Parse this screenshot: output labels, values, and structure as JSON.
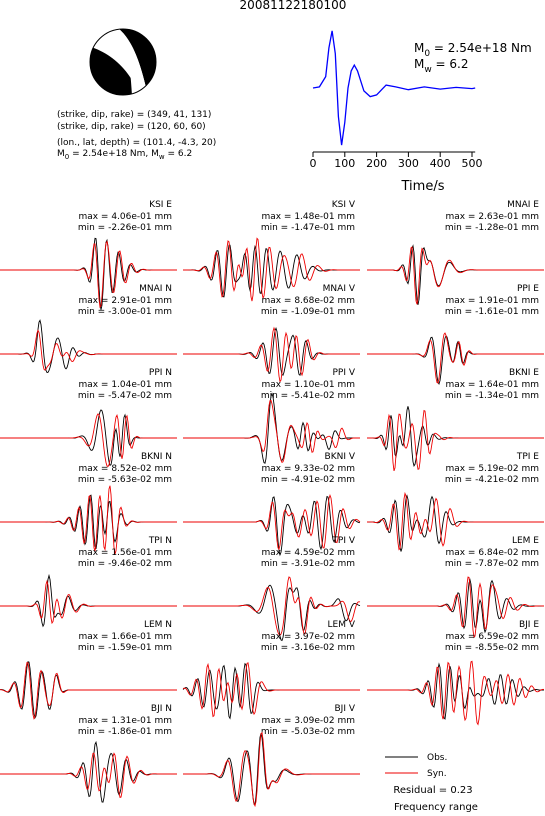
{
  "title": "20081122180100",
  "mechanism": {
    "lines": [
      "(strike, dip, rake) = (349, 41, 131)",
      "(strike, dip, rake) = (120, 60, 60)",
      "(lon., lat, depth) = (101.4, -4.3, 20)"
    ],
    "moment": {
      "m": "M",
      "m_sub": "0",
      "m_text": " = 2.54e+18 Nm, ",
      "w": "M",
      "w_sub": "w",
      "w_text": " = 6.2"
    }
  },
  "chart_data": {
    "type": "line",
    "x_label": "Time/s",
    "color": "#0000ff",
    "x": [
      0,
      20,
      40,
      50,
      60,
      70,
      80,
      90,
      100,
      110,
      120,
      130,
      140,
      160,
      180,
      200,
      230,
      260,
      300,
      350,
      400,
      450,
      500,
      510
    ],
    "values": [
      0,
      0.02,
      0.2,
      0.7,
      1.0,
      0.6,
      -0.5,
      -1.0,
      -0.6,
      0.0,
      0.3,
      0.4,
      0.3,
      -0.05,
      -0.15,
      -0.12,
      0.05,
      0.02,
      -0.03,
      0.02,
      -0.02,
      0.01,
      -0.01,
      0
    ],
    "xlim": [
      0,
      510
    ],
    "xticks": [
      0,
      100,
      200,
      300,
      400,
      500
    ],
    "ylim": [
      -1.05,
      1.05
    ],
    "annotation": {
      "m": "M",
      "m_sub": "0",
      "m_text": " = 2.54e+18 Nm",
      "w": "M",
      "w_sub": "w",
      "w_text": " = 6.2"
    }
  },
  "panels": [
    {
      "station": "KSI E",
      "max": "max = 4.06e-01 mm",
      "min": "min = -2.26e-01 mm"
    },
    {
      "station": "KSI V",
      "max": "max = 1.48e-01 mm",
      "min": "min = -1.47e-01 mm"
    },
    {
      "station": "MNAI E",
      "max": "max = 2.63e-01 mm",
      "min": "min = -1.28e-01 mm"
    },
    {
      "station": "MNAI N",
      "max": "max = 2.91e-01 mm",
      "min": "min = -3.00e-01 mm"
    },
    {
      "station": "MNAI V",
      "max": "max = 8.68e-02 mm",
      "min": "min = -1.09e-01 mm"
    },
    {
      "station": "PPI E",
      "max": "max = 1.91e-01 mm",
      "min": "min = -1.61e-01 mm"
    },
    {
      "station": "PPI N",
      "max": "max = 1.04e-01 mm",
      "min": "min = -5.47e-02 mm"
    },
    {
      "station": "PPI V",
      "max": "max = 1.10e-01 mm",
      "min": "min = -5.41e-02 mm"
    },
    {
      "station": "BKNI E",
      "max": "max = 1.64e-01 mm",
      "min": "min = -1.34e-01 mm"
    },
    {
      "station": "BKNI N",
      "max": "max = 8.52e-02 mm",
      "min": "min = -5.63e-02 mm"
    },
    {
      "station": "BKNI V",
      "max": "max = 9.33e-02 mm",
      "min": "min = -4.91e-02 mm"
    },
    {
      "station": "TPI E",
      "max": "max = 5.19e-02 mm",
      "min": "min = -4.21e-02 mm"
    },
    {
      "station": "TPI N",
      "max": "max = 1.56e-01 mm",
      "min": "min = -9.46e-02 mm"
    },
    {
      "station": "TPI V",
      "max": "max = 4.59e-02 mm",
      "min": "min = -3.91e-02 mm"
    },
    {
      "station": "LEM E",
      "max": "max = 6.84e-02 mm",
      "min": "min = -7.87e-02 mm"
    },
    {
      "station": "LEM N",
      "max": "max = 1.66e-01 mm",
      "min": "min = -1.59e-01 mm"
    },
    {
      "station": "LEM V",
      "max": "max = 3.97e-02 mm",
      "min": "min = -3.16e-02 mm"
    },
    {
      "station": "BJI E",
      "max": "max = 6.59e-02 mm",
      "min": "min = -8.55e-02 mm"
    },
    {
      "station": "BJI N",
      "max": "max = 1.31e-01 mm",
      "min": "min = -1.86e-01 mm"
    },
    {
      "station": "BJI V",
      "max": "max = 3.09e-02 mm",
      "min": "min = -5.03e-02 mm"
    }
  ],
  "legend": {
    "obs": "Obs.",
    "syn": "Syn.",
    "residual": "Residual = 0.23",
    "frequency": "Frequency range"
  }
}
